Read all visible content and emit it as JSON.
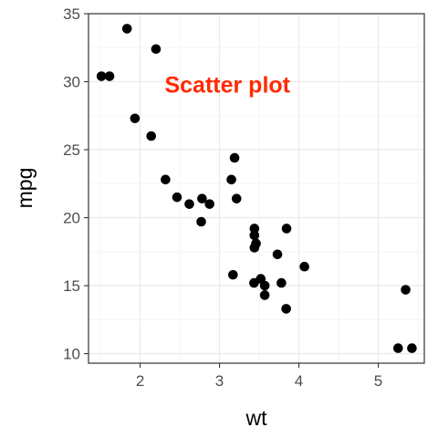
{
  "chart_data": {
    "type": "scatter",
    "title": "",
    "annotation": {
      "text": "Scatter plot",
      "x": 3.1,
      "y": 29.8,
      "color": "#ff2a00"
    },
    "xlabel": "wt",
    "ylabel": "mpg",
    "xlim": [
      1.35,
      5.58
    ],
    "ylim": [
      9.3,
      35.0
    ],
    "xticks": [
      2,
      3,
      4,
      5
    ],
    "yticks": [
      10,
      15,
      20,
      25,
      30,
      35
    ],
    "grid": true,
    "point_color": "#000000",
    "points": [
      {
        "x": 1.513,
        "y": 30.4
      },
      {
        "x": 1.615,
        "y": 30.4
      },
      {
        "x": 1.835,
        "y": 33.9
      },
      {
        "x": 1.935,
        "y": 27.3
      },
      {
        "x": 2.14,
        "y": 26.0
      },
      {
        "x": 2.2,
        "y": 32.4
      },
      {
        "x": 2.32,
        "y": 22.8
      },
      {
        "x": 2.465,
        "y": 21.5
      },
      {
        "x": 2.62,
        "y": 21.0
      },
      {
        "x": 2.77,
        "y": 19.7
      },
      {
        "x": 2.78,
        "y": 21.4
      },
      {
        "x": 2.875,
        "y": 21.0
      },
      {
        "x": 3.15,
        "y": 22.8
      },
      {
        "x": 3.17,
        "y": 15.8
      },
      {
        "x": 3.19,
        "y": 24.4
      },
      {
        "x": 3.215,
        "y": 21.4
      },
      {
        "x": 3.435,
        "y": 15.2
      },
      {
        "x": 3.44,
        "y": 18.7
      },
      {
        "x": 3.44,
        "y": 19.2
      },
      {
        "x": 3.44,
        "y": 17.8
      },
      {
        "x": 3.46,
        "y": 18.1
      },
      {
        "x": 3.52,
        "y": 15.5
      },
      {
        "x": 3.57,
        "y": 14.3
      },
      {
        "x": 3.57,
        "y": 15.0
      },
      {
        "x": 3.73,
        "y": 17.3
      },
      {
        "x": 3.78,
        "y": 15.2
      },
      {
        "x": 3.84,
        "y": 13.3
      },
      {
        "x": 3.845,
        "y": 19.2
      },
      {
        "x": 4.07,
        "y": 16.4
      },
      {
        "x": 5.25,
        "y": 10.4
      },
      {
        "x": 5.345,
        "y": 14.7
      },
      {
        "x": 5.424,
        "y": 10.4
      }
    ]
  }
}
